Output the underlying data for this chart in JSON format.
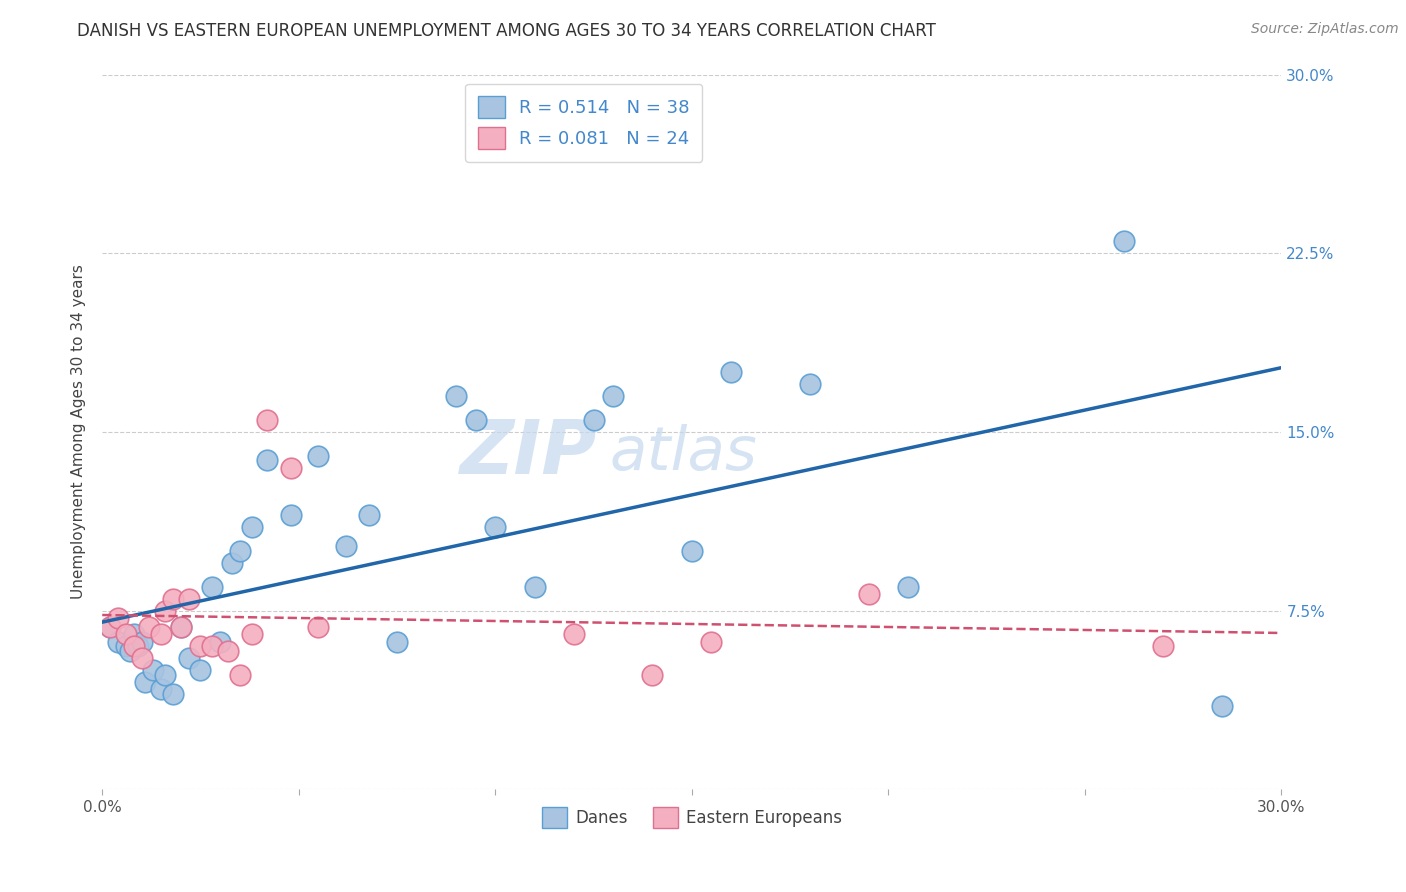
{
  "title": "DANISH VS EASTERN EUROPEAN UNEMPLOYMENT AMONG AGES 30 TO 34 YEARS CORRELATION CHART",
  "source": "Source: ZipAtlas.com",
  "ylabel": "Unemployment Among Ages 30 to 34 years",
  "xlim": [
    0.0,
    0.3
  ],
  "ylim": [
    0.0,
    0.3
  ],
  "danes_R": 0.514,
  "danes_N": 38,
  "eeuropeans_R": 0.081,
  "eeuropeans_N": 24,
  "danes_color": "#a8c4e0",
  "danes_edge_color": "#5a9fd4",
  "danes_line_color": "#2266aa",
  "eeuropeans_color": "#f4b0c0",
  "eeuropeans_edge_color": "#e07090",
  "eeuropeans_line_color": "#d05070",
  "watermark_color": "#c5d8ee",
  "danes_x": [
    0.002,
    0.004,
    0.006,
    0.007,
    0.008,
    0.009,
    0.01,
    0.011,
    0.013,
    0.015,
    0.016,
    0.018,
    0.02,
    0.022,
    0.025,
    0.028,
    0.03,
    0.033,
    0.035,
    0.038,
    0.042,
    0.048,
    0.055,
    0.062,
    0.068,
    0.075,
    0.09,
    0.095,
    0.1,
    0.11,
    0.125,
    0.13,
    0.15,
    0.16,
    0.18,
    0.205,
    0.26,
    0.285
  ],
  "danes_y": [
    0.068,
    0.062,
    0.06,
    0.058,
    0.065,
    0.06,
    0.062,
    0.045,
    0.05,
    0.042,
    0.048,
    0.04,
    0.068,
    0.055,
    0.05,
    0.085,
    0.062,
    0.095,
    0.1,
    0.11,
    0.138,
    0.115,
    0.14,
    0.102,
    0.115,
    0.062,
    0.165,
    0.155,
    0.11,
    0.085,
    0.155,
    0.165,
    0.1,
    0.175,
    0.17,
    0.085,
    0.23,
    0.035
  ],
  "eeuropeans_x": [
    0.002,
    0.004,
    0.006,
    0.008,
    0.01,
    0.012,
    0.015,
    0.016,
    0.018,
    0.02,
    0.022,
    0.025,
    0.028,
    0.032,
    0.035,
    0.038,
    0.042,
    0.048,
    0.055,
    0.12,
    0.14,
    0.155,
    0.195,
    0.27
  ],
  "eeuropeans_y": [
    0.068,
    0.072,
    0.065,
    0.06,
    0.055,
    0.068,
    0.065,
    0.075,
    0.08,
    0.068,
    0.08,
    0.06,
    0.06,
    0.058,
    0.048,
    0.065,
    0.155,
    0.135,
    0.068,
    0.065,
    0.048,
    0.062,
    0.082,
    0.06
  ]
}
